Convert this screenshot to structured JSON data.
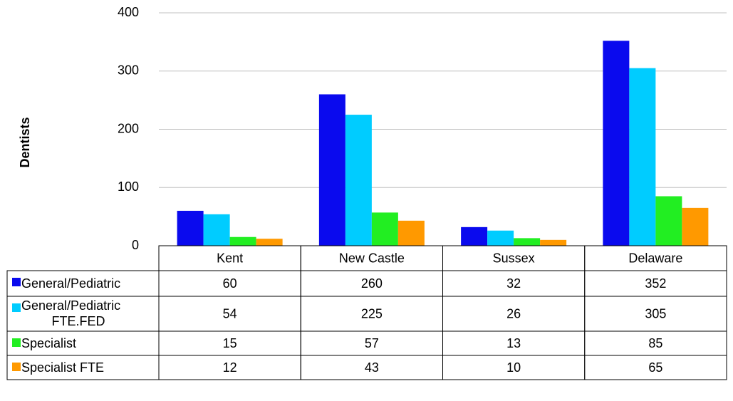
{
  "chart_data": {
    "type": "bar",
    "y_label": "Dentists",
    "categories": [
      "Kent",
      "New Castle",
      "Sussex",
      "Delaware"
    ],
    "series": [
      {
        "name": "General/Pediatric",
        "color": "#0a0aee",
        "values": [
          60,
          260,
          32,
          352
        ]
      },
      {
        "name": "General/Pediatric FTE.FED",
        "color": "#00ccff",
        "values": [
          54,
          225,
          26,
          305
        ]
      },
      {
        "name": "Specialist",
        "color": "#22ee22",
        "values": [
          15,
          57,
          13,
          85
        ]
      },
      {
        "name": "Specialist FTE",
        "color": "#ff9900",
        "values": [
          12,
          43,
          10,
          65
        ]
      }
    ],
    "ylim": [
      0,
      400
    ],
    "yticks": [
      0,
      100,
      200,
      300,
      400
    ],
    "grid": true,
    "data_table": true
  }
}
